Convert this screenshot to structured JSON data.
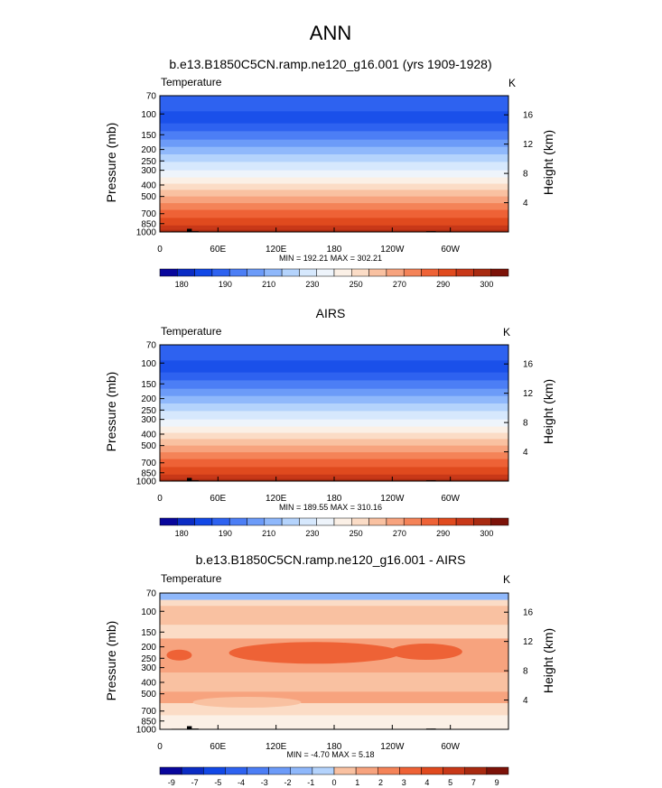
{
  "figure_title": "ANN",
  "colors": {
    "cold_palette": [
      "#08069c",
      "#0b2cc4",
      "#1248e6",
      "#2e62f0",
      "#4c7ef5",
      "#6c9bf8",
      "#8fb8fb",
      "#b4d3fc",
      "#d6e8fd",
      "#eef4fb"
    ],
    "warm_palette": [
      "#fbf0e6",
      "#fbdcc6",
      "#f9c1a1",
      "#f7a37e",
      "#f48358",
      "#ee6236",
      "#e04a1e",
      "#c83818",
      "#a82a10",
      "#7c1208"
    ],
    "land": "#000000"
  },
  "chart_data": [
    {
      "type": "heatmap",
      "panel": "model",
      "title": "b.e13.B1850C5CN.ramp.ne120_g16.001 (yrs 1909-1928)",
      "left_label": "Temperature",
      "right_label": "K",
      "ylabel": "Pressure (mb)",
      "y2label": "Height (km)",
      "pressure_ticks": [
        "70",
        "100",
        "150",
        "200",
        "250",
        "300",
        "400",
        "500",
        "700",
        "850",
        "1000"
      ],
      "pressure_values": [
        70,
        100,
        150,
        200,
        250,
        300,
        400,
        500,
        700,
        850,
        1000
      ],
      "height_ticks": [
        "16",
        "12",
        "8",
        "4"
      ],
      "x_ticks": [
        "0",
        "60E",
        "120E",
        "180",
        "120W",
        "60W"
      ],
      "xlim": [
        0,
        360
      ],
      "minmax": "MIN = 192.21  MAX = 302.21",
      "colorbar": {
        "labels": [
          "180",
          "190",
          "210",
          "230",
          "250",
          "270",
          "290",
          "300"
        ],
        "boxes": 20
      },
      "levels_K": [
        195,
        200,
        205,
        210,
        215,
        220,
        225,
        230,
        235,
        240,
        245,
        250,
        255,
        260,
        265,
        270,
        275,
        280,
        285,
        290,
        295,
        300
      ]
    },
    {
      "type": "heatmap",
      "panel": "obs",
      "title": "AIRS",
      "left_label": "Temperature",
      "right_label": "K",
      "ylabel": "Pressure (mb)",
      "y2label": "Height (km)",
      "pressure_ticks": [
        "70",
        "100",
        "150",
        "200",
        "250",
        "300",
        "400",
        "500",
        "700",
        "850",
        "1000"
      ],
      "pressure_values": [
        70,
        100,
        150,
        200,
        250,
        300,
        400,
        500,
        700,
        850,
        1000
      ],
      "height_ticks": [
        "16",
        "12",
        "8",
        "4"
      ],
      "x_ticks": [
        "0",
        "60E",
        "120E",
        "180",
        "120W",
        "60W"
      ],
      "xlim": [
        0,
        360
      ],
      "minmax": "MIN = 189.55  MAX = 310.16",
      "colorbar": {
        "labels": [
          "180",
          "190",
          "210",
          "230",
          "250",
          "270",
          "290",
          "300"
        ],
        "boxes": 20
      }
    },
    {
      "type": "heatmap",
      "panel": "diff",
      "title": "b.e13.B1850C5CN.ramp.ne120_g16.001 - AIRS",
      "left_label": "Temperature",
      "right_label": "K",
      "ylabel": "Pressure (mb)",
      "y2label": "Height (km)",
      "pressure_ticks": [
        "70",
        "100",
        "150",
        "200",
        "250",
        "300",
        "400",
        "500",
        "700",
        "850",
        "1000"
      ],
      "pressure_values": [
        70,
        100,
        150,
        200,
        250,
        300,
        400,
        500,
        700,
        850,
        1000
      ],
      "height_ticks": [
        "16",
        "12",
        "8",
        "4"
      ],
      "x_ticks": [
        "0",
        "60E",
        "120E",
        "180",
        "120W",
        "60W"
      ],
      "xlim": [
        0,
        360
      ],
      "minmax": "MIN = -4.70  MAX =  5.18",
      "colorbar": {
        "labels": [
          "-9",
          "-7",
          "-5",
          "-4",
          "-3",
          "-2",
          "-1",
          "0",
          "1",
          "2",
          "3",
          "4",
          "5",
          "7",
          "9"
        ],
        "boxes": 16
      }
    }
  ]
}
